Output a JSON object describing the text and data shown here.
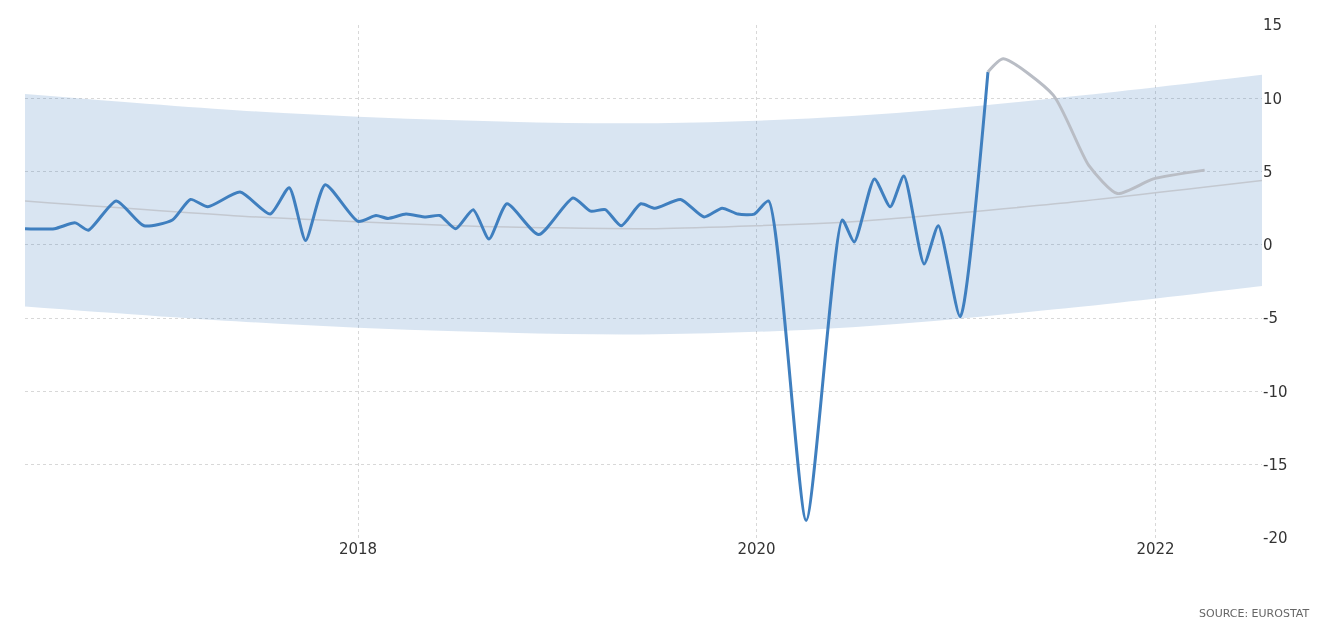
{
  "chart_data": {
    "type": "line",
    "annotations": [
      "SOURCE: EUROSTAT"
    ],
    "series": [
      {
        "color": "#c3c8d0",
        "line_style": "solid",
        "x": [
          "2016-05-01",
          "2017-07-01",
          "2018-07-01",
          "2019-07-01",
          "2020-07-01",
          "2021-07-01",
          "2022-07-15"
        ],
        "values": [
          3.0,
          1.9,
          1.3,
          1.1,
          1.6,
          2.8,
          4.4
        ],
        "lower": [
          -4.2,
          -5.3,
          -5.9,
          -6.1,
          -5.6,
          -4.4,
          -2.8
        ],
        "upper": [
          10.3,
          9.1,
          8.5,
          8.3,
          8.8,
          10.0,
          11.6
        ]
      },
      {
        "color": "#3f7fbf",
        "line_style": "solid",
        "x": [
          "2016-05-01",
          "2016-06-24",
          "2016-08-01",
          "2016-08-25",
          "2016-10-15",
          "2016-12-05",
          "2017-01-26",
          "2017-02-28",
          "2017-04-01",
          "2017-05-30",
          "2017-07-24",
          "2017-08-28",
          "2017-09-27",
          "2017-11-02",
          "2018-01-01",
          "2018-02-03",
          "2018-02-25",
          "2018-03-30",
          "2018-05-05",
          "2018-05-31",
          "2018-06-29",
          "2018-07-31",
          "2018-08-29",
          "2018-10-01",
          "2018-11-28",
          "2019-01-30",
          "2019-03-03",
          "2019-03-30",
          "2019-04-28",
          "2019-06-03",
          "2019-06-29",
          "2019-08-15",
          "2019-09-27",
          "2019-10-30",
          "2019-11-28",
          "2019-12-28",
          "2020-01-23",
          "2020-04-01",
          "2020-06-06",
          "2020-06-28",
          "2020-08-04",
          "2020-09-02",
          "2020-09-27",
          "2020-11-03",
          "2020-11-29",
          "2021-01-08",
          "2021-02-28"
        ],
        "values": [
          1.1,
          1.1,
          1.5,
          1.0,
          3.0,
          1.3,
          1.7,
          3.1,
          2.6,
          3.6,
          2.1,
          3.9,
          0.3,
          4.1,
          1.6,
          2.0,
          1.8,
          2.1,
          1.9,
          2.0,
          1.1,
          2.4,
          0.4,
          2.8,
          0.7,
          3.2,
          2.3,
          2.4,
          1.3,
          2.8,
          2.5,
          3.1,
          1.9,
          2.5,
          2.1,
          2.1,
          3.0,
          -18.8,
          1.7,
          0.2,
          4.5,
          2.6,
          4.7,
          -1.3,
          1.3,
          -4.9,
          11.8
        ]
      },
      {
        "color": "#b9bdc5",
        "line_style": "solid",
        "x": [
          "2021-02-28",
          "2021-03-28",
          "2021-06-28",
          "2021-09-01",
          "2021-10-23",
          "2021-12-28",
          "2022-04-01"
        ],
        "values": [
          11.8,
          12.7,
          10.2,
          5.4,
          3.5,
          4.5,
          5.1
        ]
      }
    ],
    "xlim": [
      "2016-05-01",
      "2022-07-15"
    ],
    "xticks": [
      "2018",
      "2020",
      "2022"
    ],
    "ylim": [
      -20,
      15
    ],
    "yticks": [
      -20,
      -15,
      -10,
      -5,
      0,
      5,
      10,
      15
    ],
    "grid": true,
    "marker": "none"
  }
}
